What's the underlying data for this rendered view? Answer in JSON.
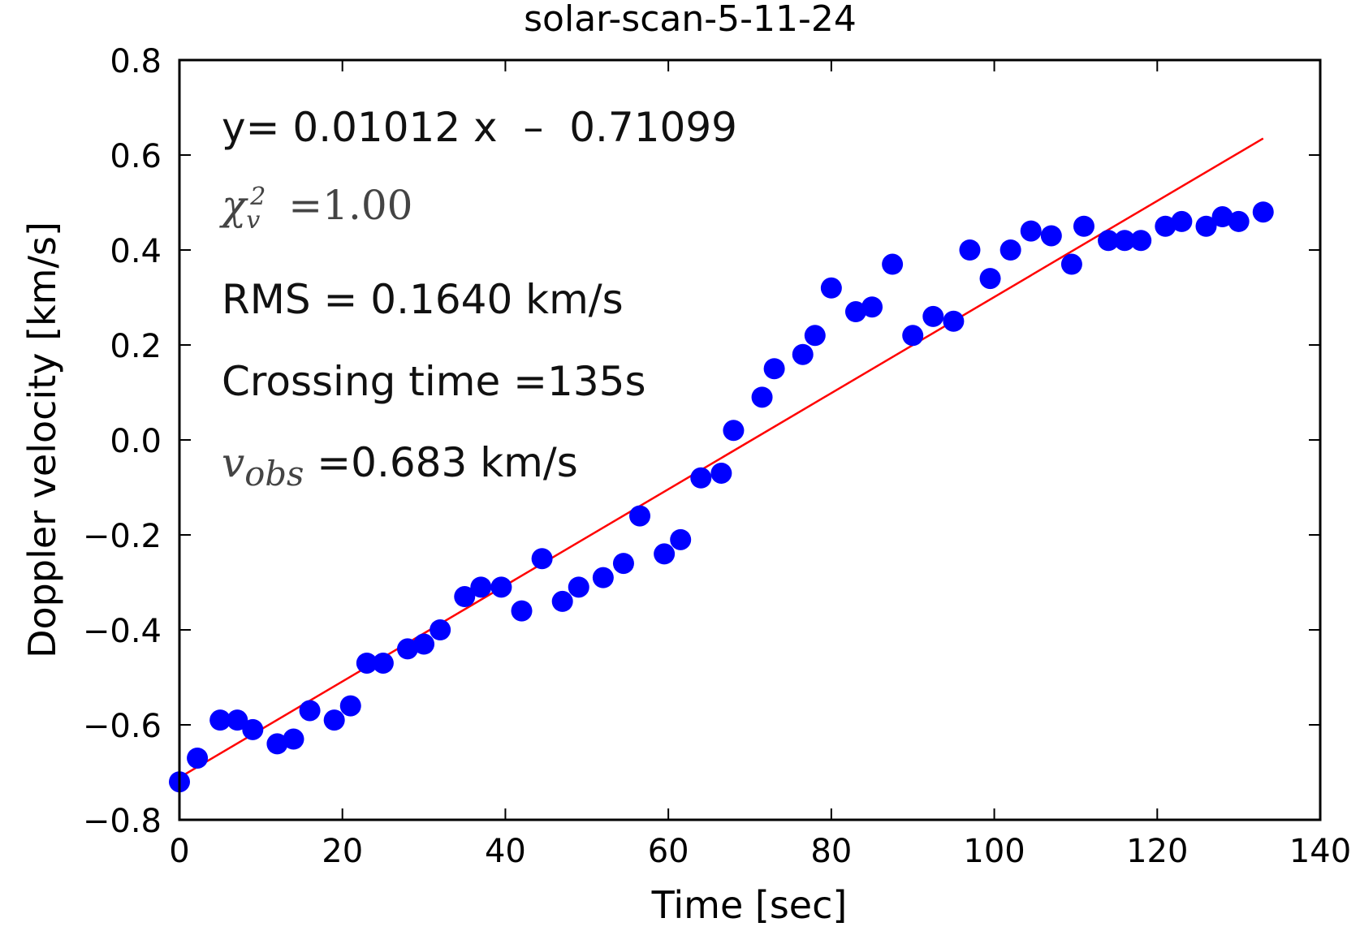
{
  "chart_data": {
    "type": "scatter",
    "title": "solar-scan-5-11-24",
    "xlabel": "Time [sec]",
    "ylabel": "Doppler velocity [km/s]",
    "xlim": [
      0,
      140
    ],
    "ylim": [
      -0.8,
      0.8
    ],
    "xticks": [
      "0",
      "20",
      "40",
      "60",
      "80",
      "100",
      "120",
      "140"
    ],
    "yticks": [
      "−0.8",
      "−0.6",
      "−0.4",
      "−0.2",
      "0.0",
      "0.2",
      "0.4",
      "0.6",
      "0.8"
    ],
    "grid": false,
    "colors": {
      "points": "#0000ff",
      "fit": "#ff0000"
    },
    "series": [
      {
        "x": [
          0.0,
          2.2,
          5.0,
          7.1,
          9.0,
          12.0,
          14.0,
          16.0,
          19.0,
          21.0,
          23.0,
          25.0,
          28.0,
          30.0,
          32.0,
          35.0,
          37.0,
          39.5,
          42.0,
          44.5,
          47.0,
          49.0,
          52.0,
          54.5,
          56.5,
          59.5,
          61.5,
          64.0,
          66.5,
          68.0,
          71.5,
          73.0,
          76.5,
          78.0,
          80.0,
          83.0,
          85.0,
          87.5,
          90.0,
          92.5,
          95.0,
          97.0,
          99.5,
          102.0,
          104.5,
          107.0,
          109.5,
          111.0,
          114.0,
          116.0,
          118.0,
          121.0,
          123.0,
          126.0,
          128.0,
          130.0,
          133.0
        ],
        "values": [
          -0.72,
          -0.67,
          -0.59,
          -0.59,
          -0.61,
          -0.64,
          -0.63,
          -0.57,
          -0.59,
          -0.56,
          -0.47,
          -0.47,
          -0.44,
          -0.43,
          -0.4,
          -0.33,
          -0.31,
          -0.31,
          -0.36,
          -0.25,
          -0.34,
          -0.31,
          -0.29,
          -0.26,
          -0.16,
          -0.24,
          -0.21,
          -0.08,
          -0.07,
          0.02,
          0.09,
          0.15,
          0.18,
          0.22,
          0.32,
          0.27,
          0.28,
          0.37,
          0.22,
          0.26,
          0.25,
          0.4,
          0.34,
          0.4,
          0.44,
          0.43,
          0.37,
          0.45,
          0.42,
          0.42,
          0.42,
          0.45,
          0.46,
          0.45,
          0.47,
          0.46,
          0.48
        ]
      }
    ],
    "fit": {
      "slope": 0.01012,
      "intercept": -0.71099,
      "x": [
        0,
        133
      ]
    },
    "annotations": {
      "equation": "y= 0.01012 x  –  0.71099",
      "chi_symbol": "χ",
      "chi_sup": "2",
      "chi_sub": "v",
      "chi_value": " =1.00",
      "rms": "RMS = 0.1640 km/s",
      "crossing": "Crossing time =135s",
      "v_symbol": "v",
      "v_sub": "obs",
      "v_value": " =0.683 km/s"
    }
  }
}
